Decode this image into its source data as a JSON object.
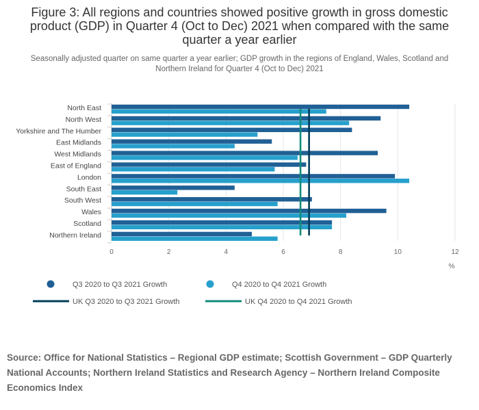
{
  "title": "Figure 3: All regions and countries showed positive growth in gross domestic product (GDP) in Quarter 4 (Oct to Dec) 2021 when compared with the same quarter a year earlier",
  "subtitle": "Seasonally adjusted quarter on same quarter a year earlier; GDP growth in the regions of England, Wales, Scotland and Northern Ireland for Quarter 4 (Oct to Dec) 2021",
  "source": "Source: Office for National Statistics – Regional GDP estimate; Scottish Government – GDP Quarterly National Accounts; Northern Ireland Statistics and Research Agency – Northern Ireland Composite Economics Index",
  "chart_data": {
    "type": "bar",
    "orientation": "horizontal",
    "categories": [
      "North East",
      "North West",
      "Yorkshire and The Humber",
      "East Midlands",
      "West Midlands",
      "East of England",
      "London",
      "South East",
      "South West",
      "Wales",
      "Scotland",
      "Northern Ireland"
    ],
    "series": [
      {
        "name": "Q3 2020 to Q3 2021 Growth",
        "color": "#206095",
        "values": [
          10.4,
          9.4,
          8.4,
          5.6,
          9.3,
          6.8,
          9.9,
          4.3,
          7.0,
          9.6,
          7.7,
          4.9
        ]
      },
      {
        "name": "Q4 2020 to Q4 2021 Growth",
        "color": "#27a0cc",
        "values": [
          7.5,
          8.3,
          5.1,
          4.3,
          6.5,
          5.7,
          10.4,
          2.3,
          5.8,
          8.2,
          7.7,
          5.8
        ]
      }
    ],
    "reference_lines": [
      {
        "name": "UK Q3 2020 to Q3 2021 Growth",
        "value": 6.9,
        "color": "#003c57"
      },
      {
        "name": "UK Q4 2020 to Q4 2021 Growth",
        "value": 6.6,
        "color": "#118c7b"
      }
    ],
    "xlim": [
      0,
      12
    ],
    "xticks": [
      0,
      2,
      4,
      6,
      8,
      10,
      12
    ],
    "xlabel": "%",
    "grid": true,
    "legend_position": "bottom"
  }
}
